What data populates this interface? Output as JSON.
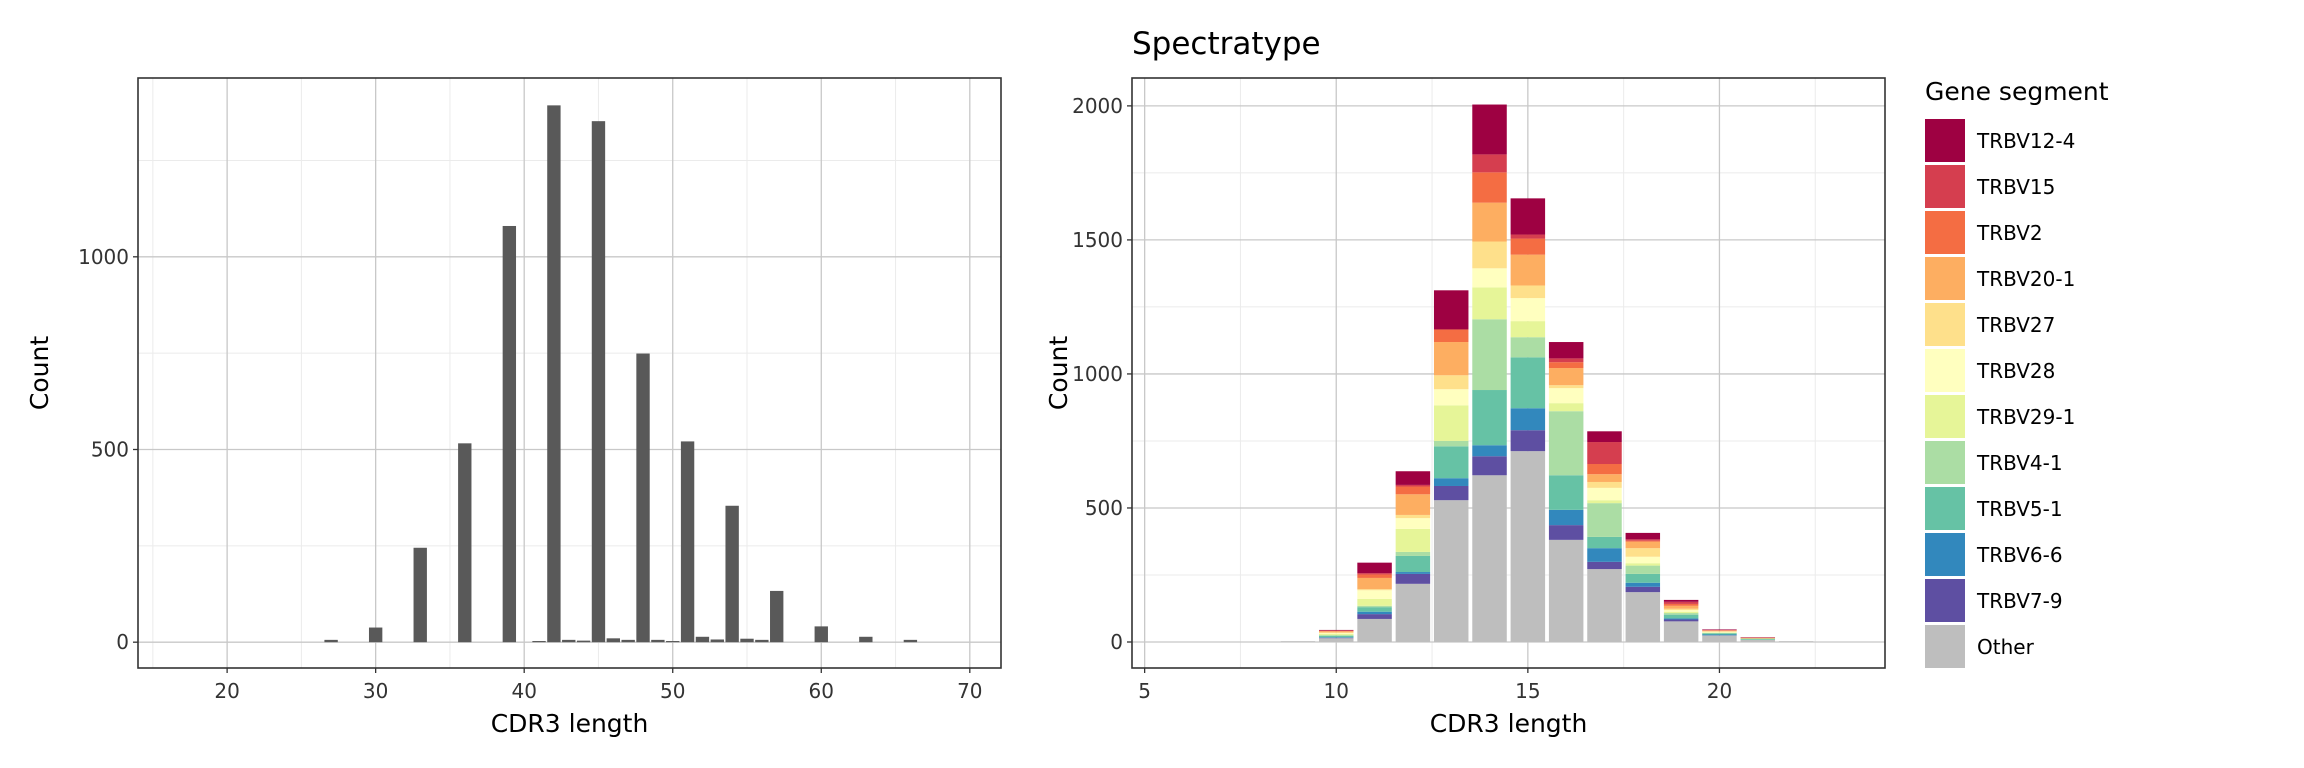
{
  "chart_data": [
    {
      "type": "bar",
      "title": "",
      "xlabel": "CDR3 length",
      "ylabel": "Count",
      "xlim": [
        14.0,
        72.1
      ],
      "ylim": [
        -67,
        1464
      ],
      "xticks": [
        20,
        30,
        40,
        50,
        60,
        70
      ],
      "yticks": [
        0,
        500,
        1000
      ],
      "grid": true,
      "bar_color": "#595959",
      "x": [
        27,
        30,
        33,
        36,
        39,
        41,
        42,
        43,
        44,
        45,
        46,
        47,
        48,
        49,
        50,
        51,
        52,
        53,
        54,
        55,
        56,
        57,
        60,
        63,
        66
      ],
      "values": [
        6,
        38,
        245,
        516,
        1080,
        3,
        1393,
        6,
        4,
        1352,
        10,
        6,
        749,
        6,
        3,
        521,
        14,
        7,
        354,
        9,
        6,
        133,
        41,
        14,
        6
      ]
    },
    {
      "type": "bar",
      "stacked": true,
      "title": "Spectratype",
      "xlabel": "CDR3 length",
      "ylabel": "Count",
      "xlim": [
        4.67,
        24.32
      ],
      "ylim": [
        -97,
        2104
      ],
      "xticks": [
        5,
        10,
        15,
        20
      ],
      "yticks": [
        0,
        500,
        1000,
        1500,
        2000
      ],
      "grid": true,
      "legend": {
        "title": "Gene segment",
        "placement": "right"
      },
      "x": [
        9,
        10,
        11,
        12,
        13,
        14,
        15,
        16,
        17,
        18,
        19,
        20,
        21,
        22
      ],
      "series": [
        {
          "name": "TRBV12-4",
          "color": "#9E0142",
          "values": [
            0,
            2,
            39,
            51,
            146,
            186,
            135,
            61,
            40,
            24,
            7,
            2,
            1,
            0
          ]
        },
        {
          "name": "TRBV15",
          "color": "#D53E4F",
          "values": [
            0,
            1,
            5,
            6,
            0,
            67,
            15,
            14,
            82,
            5,
            8,
            1,
            1,
            0
          ]
        },
        {
          "name": "TRBV2",
          "color": "#F46D43",
          "values": [
            0,
            2,
            13,
            29,
            47,
            113,
            60,
            22,
            38,
            4,
            7,
            2,
            1,
            0
          ]
        },
        {
          "name": "TRBV20-1",
          "color": "#FDAE61",
          "values": [
            0,
            4,
            42,
            77,
            124,
            145,
            115,
            64,
            29,
            24,
            11,
            2,
            2,
            0
          ]
        },
        {
          "name": "TRBV27",
          "color": "#FEE08B",
          "values": [
            0,
            3,
            4,
            12,
            52,
            100,
            47,
            11,
            22,
            32,
            5,
            2,
            0,
            0
          ]
        },
        {
          "name": "TRBV28",
          "color": "#FFFFBF",
          "values": [
            0,
            3,
            32,
            40,
            60,
            71,
            86,
            56,
            46,
            24,
            6,
            2,
            0,
            0
          ]
        },
        {
          "name": "TRBV29-1",
          "color": "#E6F598",
          "values": [
            0,
            4,
            26,
            86,
            133,
            119,
            60,
            30,
            11,
            9,
            5,
            2,
            0,
            0
          ]
        },
        {
          "name": "TRBV4-1",
          "color": "#ABDDA4",
          "values": [
            0,
            3,
            5,
            15,
            20,
            264,
            75,
            239,
            126,
            31,
            6,
            2,
            2,
            0
          ]
        },
        {
          "name": "TRBV5-1",
          "color": "#66C2A5",
          "values": [
            0,
            5,
            17,
            60,
            119,
            206,
            190,
            129,
            42,
            33,
            14,
            4,
            3,
            0
          ]
        },
        {
          "name": "TRBV6-6",
          "color": "#3288BD",
          "values": [
            0,
            2,
            9,
            7,
            29,
            41,
            82,
            57,
            51,
            15,
            4,
            3,
            0,
            0
          ]
        },
        {
          "name": "TRBV7-9",
          "color": "#5E4FA2",
          "values": [
            0,
            2,
            18,
            37,
            53,
            71,
            78,
            55,
            27,
            20,
            7,
            1,
            0,
            0
          ]
        },
        {
          "name": "Other",
          "color": "#BEBEBE",
          "values": [
            3,
            14,
            86,
            217,
            529,
            622,
            712,
            381,
            272,
            186,
            77,
            24,
            8,
            3
          ]
        }
      ]
    }
  ]
}
